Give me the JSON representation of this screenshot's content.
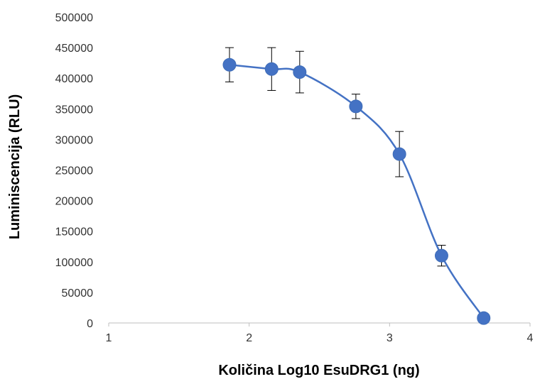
{
  "chart_data": {
    "type": "scatter",
    "title": "",
    "xlabel": "Količina Log10 EsuDRG1 (ng)",
    "ylabel": "Luminiscencija (RLU)",
    "xlim": [
      1,
      4
    ],
    "ylim": [
      0,
      500000
    ],
    "x_ticks": [
      "1",
      "2",
      "3",
      "4"
    ],
    "y_ticks": [
      "0",
      "50000",
      "100000",
      "150000",
      "200000",
      "250000",
      "300000",
      "350000",
      "400000",
      "450000",
      "500000"
    ],
    "grid": false,
    "legend": "none",
    "line_style": "smoothed",
    "series": [
      {
        "x": [
          1.86,
          2.16,
          2.36,
          2.76,
          3.07,
          3.37,
          3.67
        ],
        "y": [
          422000,
          415000,
          410000,
          354000,
          276000,
          110000,
          8000
        ],
        "error": [
          28000,
          35000,
          34000,
          20000,
          37000,
          17000,
          0
        ],
        "color": "#4472C4"
      }
    ]
  }
}
